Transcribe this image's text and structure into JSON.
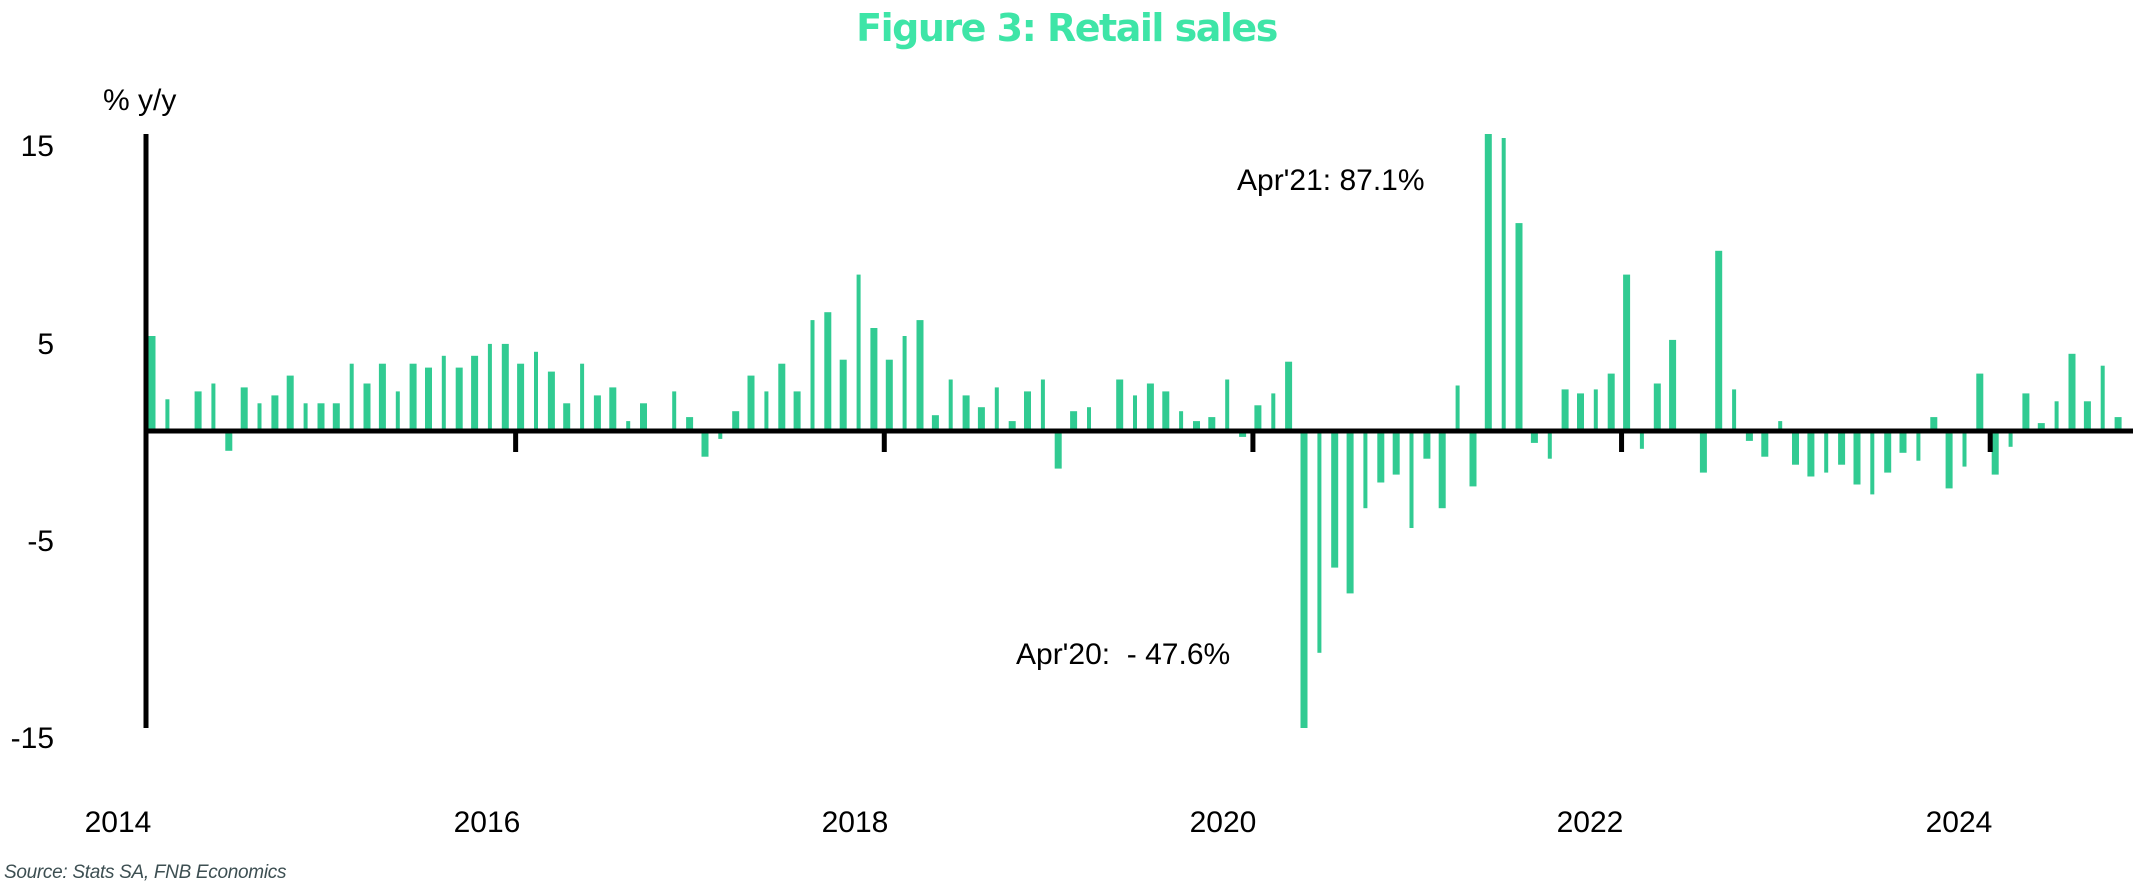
{
  "title": "Figure 3: Retail sales",
  "source": "Source: Stats SA, FNB Economics",
  "colors": {
    "bars": "#31cb92",
    "title": "#3ee5a7",
    "axis": "#000000",
    "source": "#3d4f52"
  },
  "chart_data": {
    "type": "bar",
    "title": "Figure 3: Retail sales",
    "ylabel": "% y/y",
    "xlabel": "",
    "ylim": [
      -15,
      15
    ],
    "yticks": [
      15,
      5,
      -5,
      -15
    ],
    "ytick_labels": [
      "15",
      "5",
      "-5",
      "-15"
    ],
    "xtick_labels": [
      "2014",
      "2016",
      "2018",
      "2020",
      "2022",
      "2024"
    ],
    "xtick_marks": [
      "2016",
      "2018",
      "2020",
      "2022",
      "2024"
    ],
    "grid": false,
    "frequency": "monthly",
    "start": "2014-01",
    "end": "2024-09",
    "series": [
      {
        "name": "Retail sales % y/y",
        "values": [
          4.8,
          1.6,
          0.1,
          2.0,
          2.4,
          -1.0,
          2.2,
          1.4,
          1.8,
          2.8,
          1.4,
          1.4,
          1.4,
          3.4,
          2.4,
          3.4,
          2.0,
          3.4,
          3.2,
          3.8,
          3.2,
          3.8,
          4.4,
          4.4,
          3.4,
          4.0,
          3.0,
          1.4,
          3.4,
          1.8,
          2.2,
          0.5,
          1.4,
          0.1,
          2.0,
          0.7,
          -1.3,
          -0.4,
          1.0,
          2.8,
          2.0,
          3.4,
          2.0,
          5.6,
          6.0,
          3.6,
          7.9,
          5.2,
          3.6,
          4.8,
          5.6,
          0.8,
          2.6,
          1.8,
          1.2,
          2.2,
          0.5,
          2.0,
          2.6,
          -1.9,
          1.0,
          1.2,
          0.1,
          2.6,
          1.8,
          2.4,
          2.0,
          1.0,
          0.5,
          0.7,
          2.6,
          -0.3,
          1.3,
          1.9,
          3.5,
          -47.6,
          -11.2,
          -6.9,
          -8.2,
          -3.9,
          -2.6,
          -2.2,
          -4.9,
          -1.4,
          -3.9,
          2.3,
          -2.8,
          87.1,
          14.8,
          10.5,
          -0.6,
          -1.4,
          2.1,
          1.9,
          2.1,
          2.9,
          7.9,
          -0.9,
          2.4,
          4.6,
          0.1,
          -2.1,
          9.1,
          2.1,
          -0.5,
          -1.3,
          0.5,
          -1.7,
          -2.3,
          -2.1,
          -1.7,
          -2.7,
          -3.2,
          -2.1,
          -1.1,
          -1.5,
          0.7,
          -2.9,
          -1.8,
          2.9,
          -2.2,
          -0.8,
          1.9,
          0.4,
          1.5,
          3.9,
          1.5,
          3.3,
          0.7
        ]
      }
    ],
    "annotations": [
      {
        "label": "Apr'21: 87.1%",
        "period": "2021-04",
        "value": 87.1
      },
      {
        "label": "Apr'20:  - 47.6%",
        "period": "2020-04",
        "value": -47.6
      }
    ]
  }
}
